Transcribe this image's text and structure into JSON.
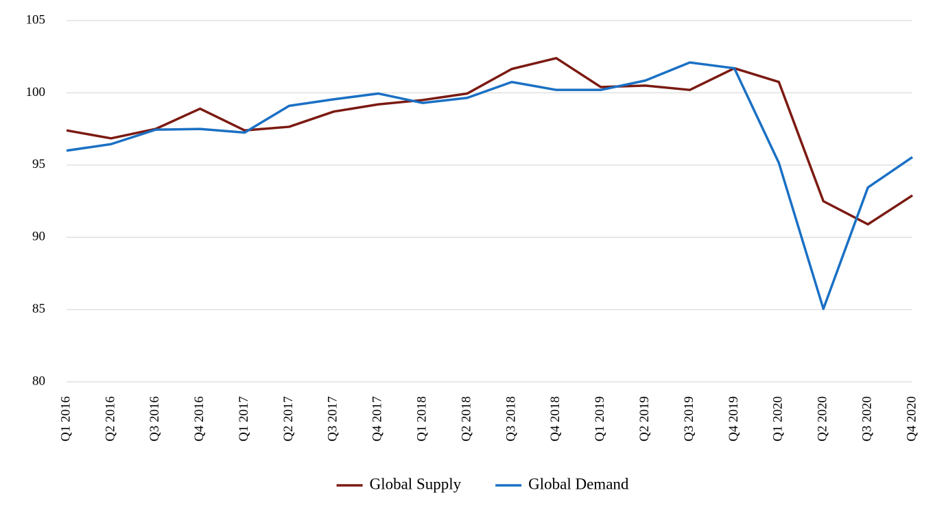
{
  "chart_data": {
    "type": "line",
    "categories": [
      "Q1 2016",
      "Q2 2016",
      "Q3 2016",
      "Q4 2016",
      "Q1 2017",
      "Q2 2017",
      "Q3 2017",
      "Q4 2017",
      "Q1 2018",
      "Q2 2018",
      "Q3 2018",
      "Q4 2018",
      "Q1 2019",
      "Q2 2019",
      "Q3 2019",
      "Q4 2019",
      "Q1 2020",
      "Q2 2020",
      "Q3 2020",
      "Q4 2020"
    ],
    "series": [
      {
        "name": "Global Supply",
        "color": "#7b1a12",
        "values": [
          97.4,
          96.85,
          97.5,
          98.9,
          97.4,
          97.65,
          98.7,
          99.2,
          99.5,
          99.95,
          101.65,
          102.4,
          100.4,
          100.5,
          100.2,
          101.7,
          100.75,
          92.5,
          90.9,
          92.9
        ]
      },
      {
        "name": "Global Demand",
        "color": "#1a70c4",
        "values": [
          96.0,
          96.45,
          97.45,
          97.5,
          97.25,
          99.1,
          99.55,
          99.95,
          99.3,
          99.65,
          100.75,
          100.2,
          100.2,
          100.85,
          102.1,
          101.7,
          95.15,
          85.05,
          93.45,
          95.55
        ]
      }
    ],
    "ylim": [
      80,
      105
    ],
    "yticks": [
      80,
      85,
      90,
      95,
      100,
      105
    ],
    "grid": true,
    "legend": "bottom"
  }
}
